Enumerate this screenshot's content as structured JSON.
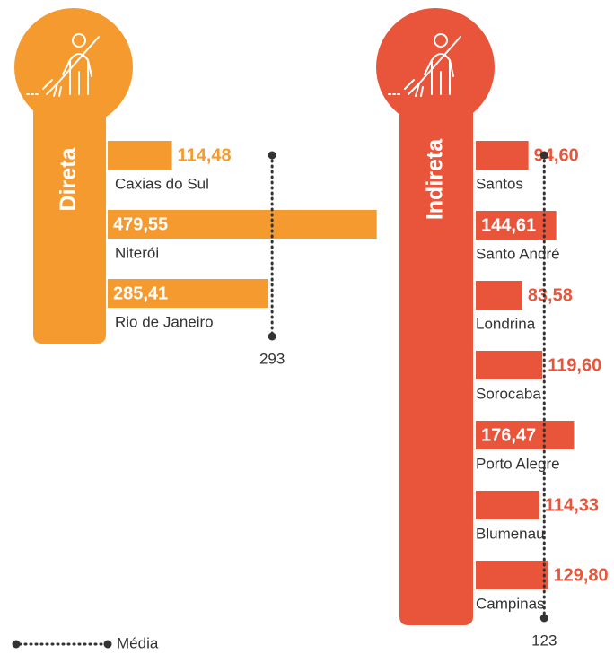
{
  "chart_data": [
    {
      "type": "bar",
      "orientation": "horizontal",
      "title": "Direta",
      "color": "#f59a2f",
      "categories": [
        "Caxias do Sul",
        "Niterói",
        "Rio de Janeiro"
      ],
      "values": [
        114.48,
        479.55,
        285.41
      ],
      "value_labels": [
        "114,48",
        "479,55",
        "285,41"
      ],
      "mean": 293
    },
    {
      "type": "bar",
      "orientation": "horizontal",
      "title": "Indireta",
      "color": "#e8553a",
      "categories": [
        "Santos",
        "Santo André",
        "Londrina",
        "Sorocaba",
        "Porto Alegre",
        "Blumenau",
        "Campinas"
      ],
      "values": [
        94.6,
        144.61,
        83.58,
        119.6,
        176.47,
        114.33,
        129.8
      ],
      "value_labels": [
        "94,60",
        "144,61",
        "83,58",
        "119,60",
        "176,47",
        "114,33",
        "129,80"
      ],
      "mean": 123
    }
  ],
  "legend": {
    "mean_label": "Média"
  }
}
